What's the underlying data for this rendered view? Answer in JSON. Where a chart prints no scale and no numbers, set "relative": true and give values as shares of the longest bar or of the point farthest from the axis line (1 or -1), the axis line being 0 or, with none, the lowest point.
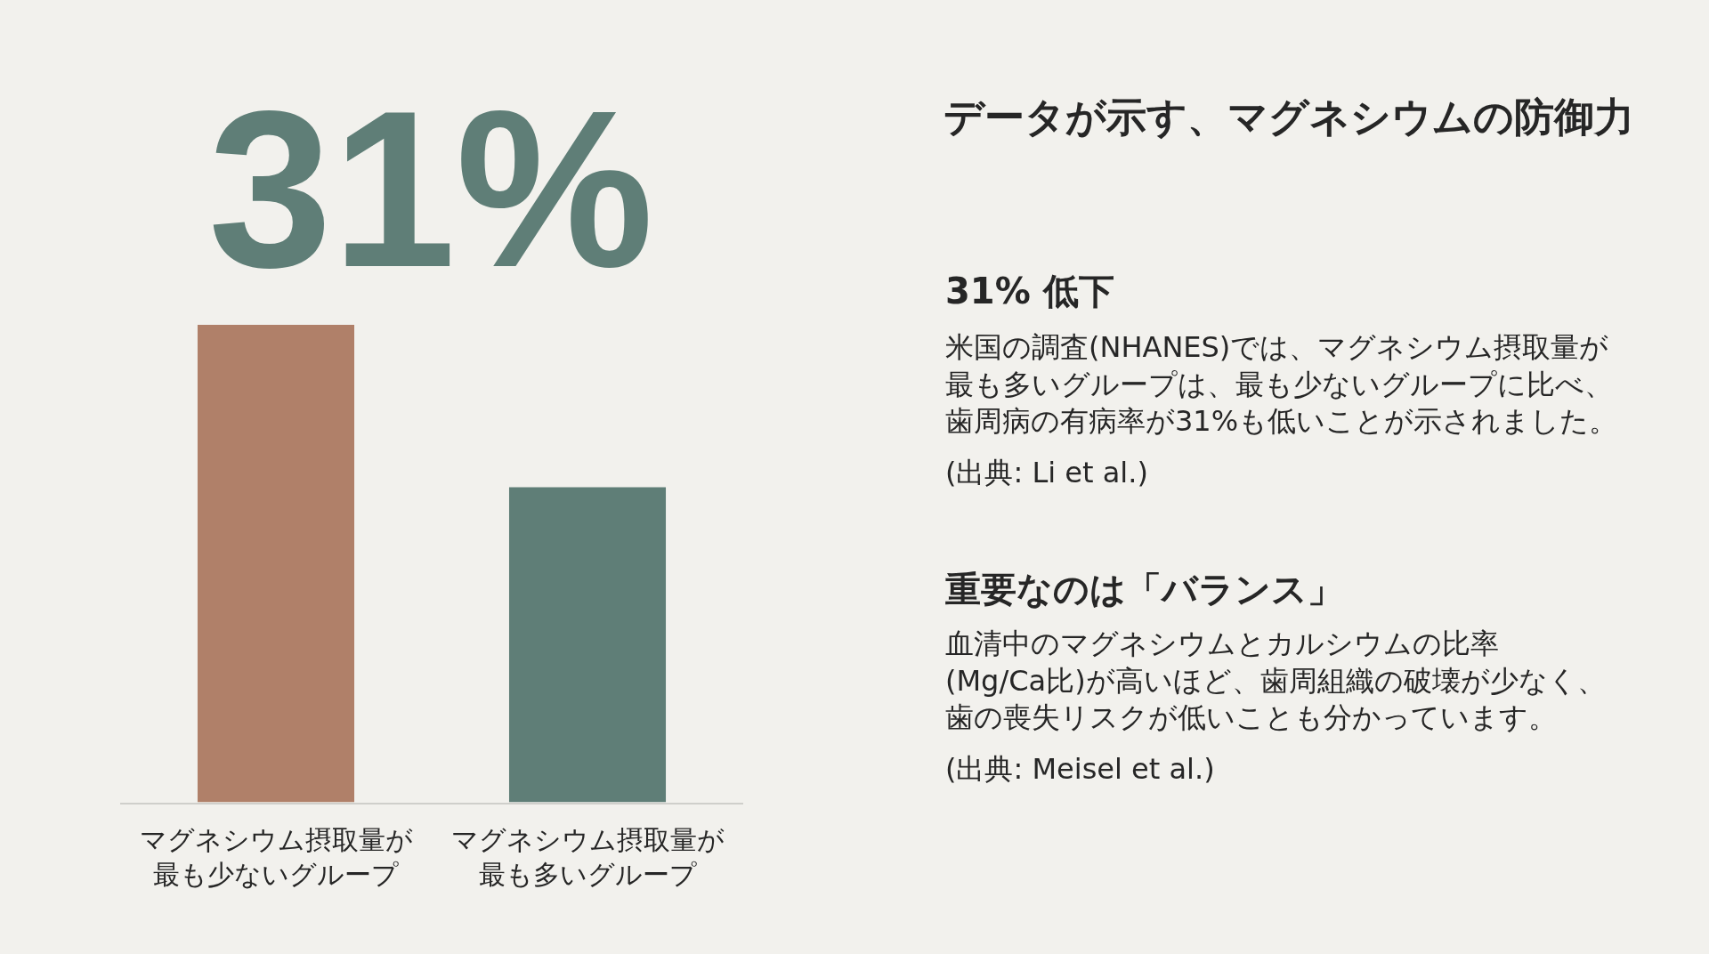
{
  "chart_data": {
    "type": "bar",
    "title": "データが示す、マグネシウムの防御力",
    "categories": [
      "マグネシウム摂取量が最も少ないグループ",
      "マグネシウム摂取量が最も多いグループ"
    ],
    "values": [
      1,
      0.66
    ],
    "colors": [
      "#b08069",
      "#5f7e77"
    ],
    "relative": true,
    "annotations": [
      "31%",
      "31% 低下",
      "米国の調査(NHANES)では、マグネシウム摂取量が最も多いグループは、最も少ないグループに比べ、歯周病の有病率が31%も低いことが示されました。",
      "(出典: Li et al.)",
      "重要なのは「バランス」",
      "血清中のマグネシウムとカルシウムの比率(Mg/Ca比)が高いほど、歯周組織の破壊が少なく、歯の喪失リスクが低いことも分かっています。",
      "(出典: Meisel et al.)"
    ]
  }
}
